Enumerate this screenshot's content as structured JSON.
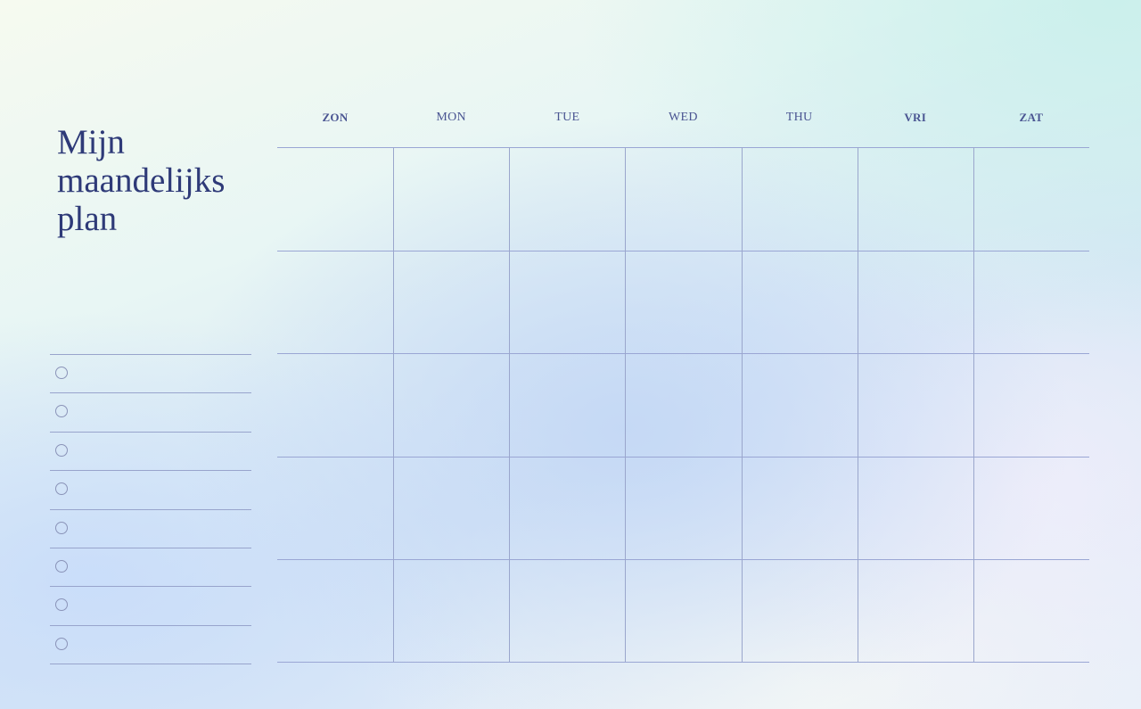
{
  "title": "Mijn maandelijks plan",
  "days": [
    {
      "label": "ZON",
      "bold": true
    },
    {
      "label": "MON",
      "bold": false
    },
    {
      "label": "TUE",
      "bold": false
    },
    {
      "label": "WED",
      "bold": false
    },
    {
      "label": "THU",
      "bold": false
    },
    {
      "label": "VRI",
      "bold": true
    },
    {
      "label": "ZAT",
      "bold": true
    }
  ],
  "weeks": 5,
  "checklist_items": 8,
  "colors": {
    "text": "#2e3a78",
    "lines": "#9aa6d4"
  }
}
